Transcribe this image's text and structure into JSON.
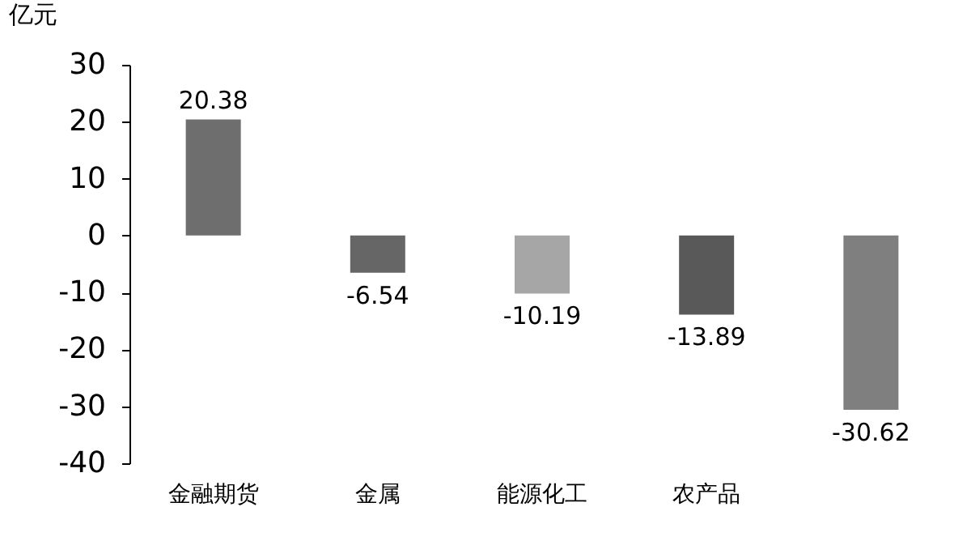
{
  "chart_data": {
    "type": "bar",
    "ylabel": "亿元",
    "categories": [
      "金融期货",
      "金属",
      "能源化工",
      "农产品",
      null
    ],
    "values": [
      20.38,
      -6.54,
      -10.19,
      -13.89,
      -30.62
    ],
    "colors": [
      "#6e6e6e",
      "#666666",
      "#a6a6a6",
      "#595959",
      "#7f7f7f"
    ],
    "ylim": [
      -40,
      30
    ],
    "yticks": [
      -40,
      -30,
      -20,
      -10,
      0,
      10,
      20,
      30
    ],
    "grid": false,
    "data_labels": true
  }
}
